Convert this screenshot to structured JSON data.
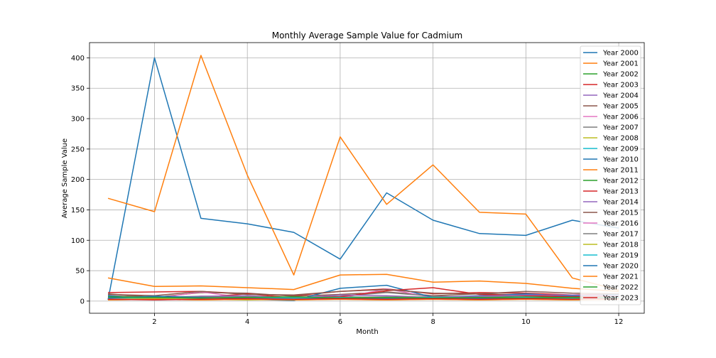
{
  "chart_data": {
    "type": "line",
    "title": "Monthly Average Sample Value for Cadmium",
    "xlabel": "Month",
    "ylabel": "Average Sample Value",
    "xlim": [
      0.6,
      12.55
    ],
    "ylim": [
      -20,
      425
    ],
    "xticks": [
      2,
      4,
      6,
      8,
      10,
      12
    ],
    "yticks": [
      0,
      50,
      100,
      150,
      200,
      250,
      300,
      350,
      400
    ],
    "grid": true,
    "legend_position": "top-right",
    "x": [
      1,
      2,
      3,
      4,
      5,
      6,
      7,
      8,
      9,
      10,
      11,
      12
    ],
    "series": [
      {
        "name": "Year 2000",
        "color": "#1f77b4",
        "values": [
          2,
          400,
          136,
          127,
          113,
          69,
          178,
          133,
          111,
          108,
          133,
          120
        ]
      },
      {
        "name": "Year 2001",
        "color": "#ff7f0e",
        "values": [
          169,
          147,
          404,
          207,
          43,
          270,
          159,
          224,
          146,
          143,
          38,
          18
        ]
      },
      {
        "name": "Year 2002",
        "color": "#2ca02c",
        "values": [
          8,
          7,
          6,
          7,
          6,
          7,
          6,
          7,
          6,
          7,
          6,
          7
        ]
      },
      {
        "name": "Year 2003",
        "color": "#d62728",
        "values": [
          14,
          15,
          16,
          12,
          9,
          16,
          20,
          12,
          14,
          13,
          10,
          12
        ]
      },
      {
        "name": "Year 2004",
        "color": "#9467bd",
        "values": [
          5,
          4,
          6,
          5,
          4,
          5,
          6,
          5,
          6,
          5,
          5,
          6
        ]
      },
      {
        "name": "Year 2005",
        "color": "#8c564b",
        "values": [
          12,
          6,
          14,
          13,
          8,
          11,
          15,
          9,
          12,
          10,
          9,
          11
        ]
      },
      {
        "name": "Year 2006",
        "color": "#e377c2",
        "values": [
          3,
          4,
          15,
          5,
          4,
          5,
          20,
          6,
          5,
          6,
          5,
          4
        ]
      },
      {
        "name": "Year 2007",
        "color": "#7f7f7f",
        "values": [
          9,
          6,
          8,
          7,
          6,
          8,
          14,
          8,
          7,
          9,
          8,
          7
        ]
      },
      {
        "name": "Year 2008",
        "color": "#bcbd22",
        "values": [
          2,
          3,
          2,
          3,
          2,
          3,
          2,
          3,
          2,
          3,
          2,
          3
        ]
      },
      {
        "name": "Year 2009",
        "color": "#17becf",
        "values": [
          4,
          5,
          4,
          5,
          4,
          5,
          4,
          5,
          4,
          5,
          4,
          5
        ]
      },
      {
        "name": "Year 2010",
        "color": "#1f77b4",
        "values": [
          9,
          2,
          4,
          3,
          1,
          21,
          26,
          6,
          9,
          12,
          8,
          11
        ]
      },
      {
        "name": "Year 2011",
        "color": "#ff7f0e",
        "values": [
          38,
          24,
          25,
          22,
          19,
          43,
          44,
          31,
          33,
          29,
          21,
          16
        ]
      },
      {
        "name": "Year 2012",
        "color": "#2ca02c",
        "values": [
          6,
          7,
          5,
          6,
          5,
          6,
          5,
          6,
          5,
          6,
          5,
          6
        ]
      },
      {
        "name": "Year 2013",
        "color": "#d62728",
        "values": [
          3,
          5,
          6,
          12,
          5,
          7,
          17,
          22,
          11,
          9,
          7,
          8
        ]
      },
      {
        "name": "Year 2014",
        "color": "#9467bd",
        "values": [
          7,
          3,
          8,
          9,
          5,
          10,
          9,
          6,
          8,
          10,
          10,
          9
        ]
      },
      {
        "name": "Year 2015",
        "color": "#8c564b",
        "values": [
          11,
          9,
          16,
          11,
          10,
          16,
          19,
          13,
          12,
          16,
          13,
          12
        ]
      },
      {
        "name": "Year 2016",
        "color": "#e377c2",
        "values": [
          4,
          3,
          5,
          4,
          3,
          4,
          5,
          4,
          3,
          4,
          3,
          4
        ]
      },
      {
        "name": "Year 2017",
        "color": "#7f7f7f",
        "values": [
          6,
          5,
          7,
          6,
          5,
          6,
          7,
          6,
          5,
          6,
          5,
          6
        ]
      },
      {
        "name": "Year 2018",
        "color": "#bcbd22",
        "values": [
          3,
          4,
          3,
          2,
          3,
          4,
          3,
          4,
          3,
          4,
          3,
          4
        ]
      },
      {
        "name": "Year 2019",
        "color": "#17becf",
        "values": [
          5,
          6,
          5,
          6,
          5,
          6,
          5,
          6,
          5,
          6,
          5,
          6
        ]
      },
      {
        "name": "Year 2020",
        "color": "#1f77b4",
        "values": [
          5,
          8,
          6,
          4,
          3,
          5,
          4,
          4,
          5,
          4,
          3,
          4
        ]
      },
      {
        "name": "Year 2021",
        "color": "#ff7f0e",
        "values": [
          2,
          3,
          2,
          3,
          2,
          3,
          2,
          3,
          2,
          3,
          2,
          3
        ]
      },
      {
        "name": "Year 2022",
        "color": "#2ca02c",
        "values": [
          7,
          6,
          5,
          6,
          7,
          5,
          6,
          5,
          6,
          5,
          6,
          5
        ]
      },
      {
        "name": "Year 2023",
        "color": "#d62728",
        "values": [
          3,
          2,
          3,
          4,
          3,
          4,
          3,
          4,
          3,
          4,
          3,
          4
        ]
      }
    ]
  }
}
